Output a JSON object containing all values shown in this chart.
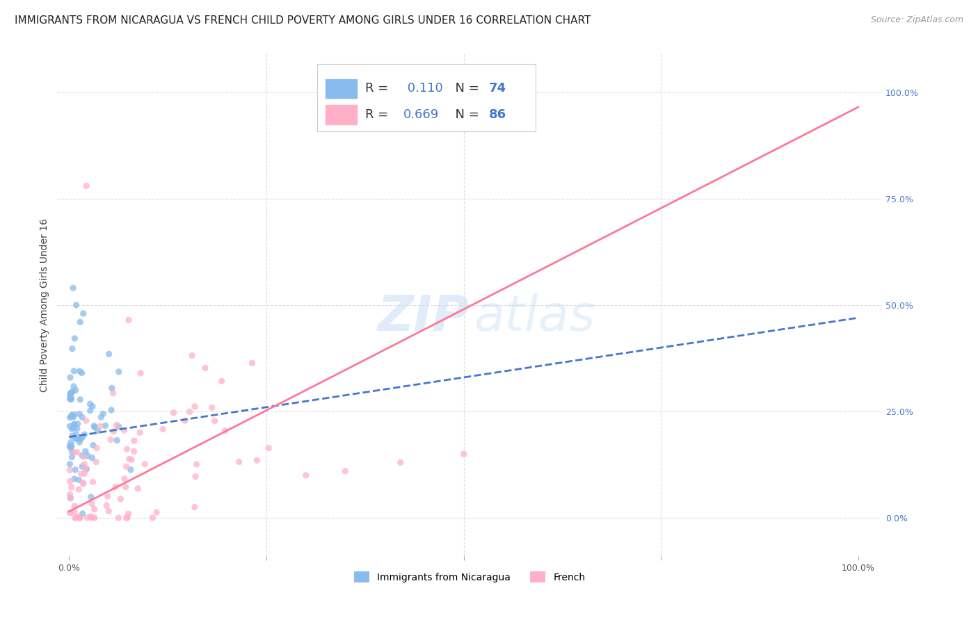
{
  "title": "IMMIGRANTS FROM NICARAGUA VS FRENCH CHILD POVERTY AMONG GIRLS UNDER 16 CORRELATION CHART",
  "source": "Source: ZipAtlas.com",
  "ylabel": "Child Poverty Among Girls Under 16",
  "color_blue": "#88BBEE",
  "color_pink": "#FFB0C8",
  "color_blue_dark": "#4477CC",
  "color_pink_line": "#FF7799",
  "legend_r1": "R =  0.110",
  "legend_n1": "N = 74",
  "legend_r2": "R = 0.669",
  "legend_n2": "N = 86",
  "watermark_zip": "ZIP",
  "watermark_atlas": "atlas",
  "background_color": "#ffffff",
  "grid_color": "#dddddd",
  "title_fontsize": 11,
  "axis_label_fontsize": 10,
  "tick_fontsize": 9,
  "legend_fontsize": 12,
  "source_fontsize": 9
}
